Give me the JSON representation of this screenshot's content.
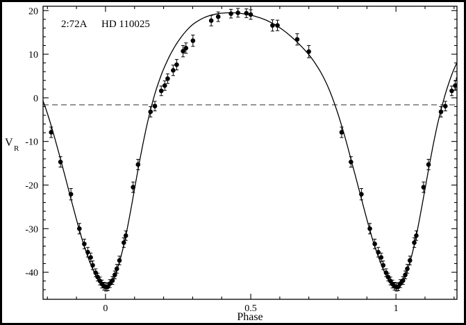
{
  "chart_data": {
    "type": "scatter",
    "panel_label": "2:72A",
    "object_name": "HD 110025",
    "xlabel": "Phase",
    "ylabel_letter": "V",
    "ylabel_subscript": "R",
    "xlim": [
      -0.215,
      1.21
    ],
    "ylim": [
      -46.2,
      21.0
    ],
    "x_major_ticks": [
      0,
      0.5,
      1
    ],
    "x_major_labels": [
      "0",
      "0.5",
      "1"
    ],
    "x_minor_step": 0.1,
    "y_major_ticks": [
      -40,
      -30,
      -20,
      -10,
      0,
      10,
      20
    ],
    "y_major_labels": [
      "-40",
      "-30",
      "-20",
      "-10",
      "0",
      "10",
      "20"
    ],
    "y_minor_step": 2,
    "grid": false,
    "legend": "none",
    "systemic_velocity_line": -1.6,
    "phase_folded_duplication": true,
    "colors": {
      "curve": "#000000",
      "marker": "#000000",
      "dashed": "#444444",
      "frame": "#000000"
    },
    "marker": {
      "shape": "filled-circle",
      "radius": 3.3
    },
    "points": [
      [
        0.002,
        -43.4,
        0.9
      ],
      [
        0.008,
        -43.3,
        0.9
      ],
      [
        0.015,
        -42.6,
        0.9
      ],
      [
        0.024,
        -41.9,
        0.9
      ],
      [
        0.032,
        -40.6,
        0.9
      ],
      [
        0.039,
        -39.2,
        1.0
      ],
      [
        0.048,
        -37.3,
        1.0
      ],
      [
        0.063,
        -33.2,
        1.1
      ],
      [
        0.07,
        -31.6,
        1.1
      ],
      [
        0.095,
        -20.5,
        1.2
      ],
      [
        0.112,
        -15.3,
        1.2
      ],
      [
        0.155,
        -3.2,
        1.2
      ],
      [
        0.17,
        -1.9,
        1.1
      ],
      [
        0.192,
        1.6,
        1.1
      ],
      [
        0.204,
        2.8,
        1.1
      ],
      [
        0.214,
        4.4,
        1.1
      ],
      [
        0.233,
        6.3,
        1.2
      ],
      [
        0.245,
        7.6,
        1.2
      ],
      [
        0.267,
        10.7,
        1.3
      ],
      [
        0.277,
        11.4,
        1.2
      ],
      [
        0.301,
        13.1,
        1.3
      ],
      [
        0.364,
        17.7,
        1.2
      ],
      [
        0.388,
        18.6,
        1.1
      ],
      [
        0.432,
        19.3,
        1.0
      ],
      [
        0.456,
        19.5,
        1.0
      ],
      [
        0.485,
        19.4,
        1.0
      ],
      [
        0.5,
        19.1,
        1.1
      ],
      [
        0.575,
        16.6,
        1.3
      ],
      [
        0.592,
        16.6,
        1.2
      ],
      [
        0.66,
        13.4,
        1.3
      ],
      [
        0.7,
        10.6,
        1.4
      ],
      [
        0.813,
        -7.9,
        1.2
      ],
      [
        0.845,
        -14.7,
        1.2
      ],
      [
        0.881,
        -22.1,
        1.3
      ],
      [
        0.91,
        -30.0,
        1.2
      ],
      [
        0.927,
        -33.5,
        1.1
      ],
      [
        0.939,
        -35.4,
        1.1
      ],
      [
        0.949,
        -36.6,
        1.0
      ],
      [
        0.956,
        -38.4,
        1.0
      ],
      [
        0.966,
        -40.1,
        0.9
      ],
      [
        0.973,
        -41.1,
        0.9
      ],
      [
        0.981,
        -42.0,
        0.9
      ],
      [
        0.988,
        -42.7,
        0.9
      ],
      [
        0.995,
        -43.2,
        0.9
      ]
    ],
    "curve": [
      [
        0.0,
        -43.6
      ],
      [
        0.01,
        -43.2
      ],
      [
        0.02,
        -42.3
      ],
      [
        0.03,
        -41.0
      ],
      [
        0.04,
        -39.3
      ],
      [
        0.05,
        -37.2
      ],
      [
        0.06,
        -34.6
      ],
      [
        0.07,
        -31.6
      ],
      [
        0.08,
        -28.2
      ],
      [
        0.09,
        -24.6
      ],
      [
        0.1,
        -20.9
      ],
      [
        0.11,
        -17.2
      ],
      [
        0.12,
        -13.6
      ],
      [
        0.13,
        -10.2
      ],
      [
        0.14,
        -7.0
      ],
      [
        0.15,
        -4.1
      ],
      [
        0.16,
        -1.5
      ],
      [
        0.17,
        0.9
      ],
      [
        0.18,
        3.0
      ],
      [
        0.19,
        4.9
      ],
      [
        0.2,
        6.6
      ],
      [
        0.22,
        9.5
      ],
      [
        0.24,
        11.9
      ],
      [
        0.26,
        13.9
      ],
      [
        0.28,
        15.5
      ],
      [
        0.3,
        16.8
      ],
      [
        0.32,
        17.7
      ],
      [
        0.34,
        18.4
      ],
      [
        0.36,
        18.9
      ],
      [
        0.38,
        19.2
      ],
      [
        0.4,
        19.4
      ],
      [
        0.43,
        19.5
      ],
      [
        0.46,
        19.4
      ],
      [
        0.49,
        19.1
      ],
      [
        0.52,
        18.6
      ],
      [
        0.55,
        17.9
      ],
      [
        0.58,
        16.9
      ],
      [
        0.61,
        15.6
      ],
      [
        0.64,
        14.0
      ],
      [
        0.67,
        12.1
      ],
      [
        0.7,
        9.9
      ],
      [
        0.72,
        8.1
      ],
      [
        0.74,
        6.0
      ],
      [
        0.76,
        3.4
      ],
      [
        0.78,
        0.2
      ],
      [
        0.8,
        -3.6
      ],
      [
        0.82,
        -8.0
      ],
      [
        0.84,
        -12.8
      ],
      [
        0.86,
        -17.8
      ],
      [
        0.88,
        -22.9
      ],
      [
        0.9,
        -27.9
      ],
      [
        0.92,
        -32.6
      ],
      [
        0.94,
        -36.6
      ],
      [
        0.96,
        -39.9
      ],
      [
        0.975,
        -41.9
      ],
      [
        0.985,
        -42.9
      ],
      [
        0.995,
        -43.5
      ],
      [
        1.0,
        -43.6
      ]
    ]
  }
}
